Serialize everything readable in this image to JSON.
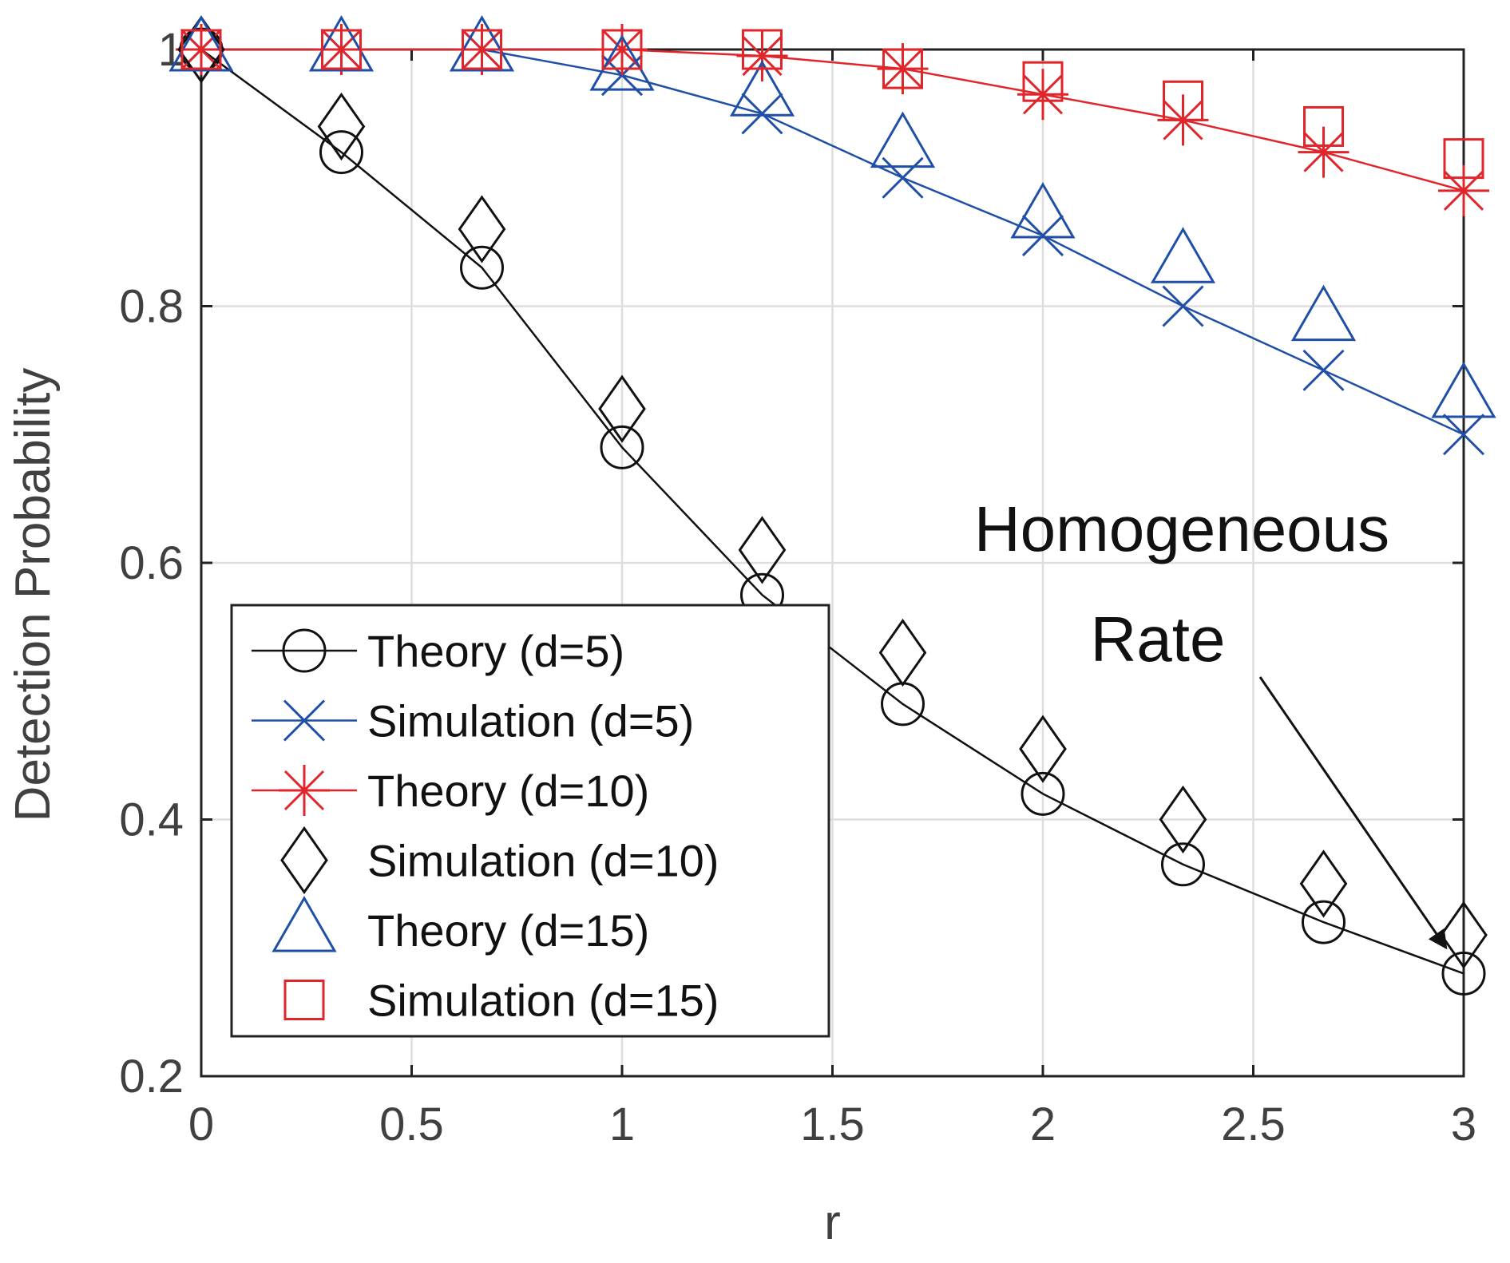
{
  "chart_data": {
    "type": "line",
    "xlabel": "r",
    "ylabel": "Detection Probability",
    "xlim": [
      0,
      3
    ],
    "ylim": [
      0.2,
      1.0
    ],
    "xticks": [
      0,
      0.5,
      1,
      1.5,
      2,
      2.5,
      3
    ],
    "xtick_labels": [
      "0",
      "0.5",
      "1",
      "1.5",
      "2",
      "2.5",
      "3"
    ],
    "yticks": [
      0.2,
      0.4,
      0.6,
      0.8,
      1.0
    ],
    "ytick_labels": [
      "0.2",
      "0.4",
      "0.6",
      "0.8",
      "1"
    ],
    "grid": true,
    "legend_position": "bottom-left",
    "x": [
      0,
      0.333,
      0.667,
      1.0,
      1.333,
      1.667,
      2.0,
      2.333,
      2.667,
      3.0
    ],
    "series": [
      {
        "name": "Theory (d=5)",
        "color": "#111111",
        "marker": "circle",
        "line": true,
        "values": [
          1.0,
          0.92,
          0.83,
          0.69,
          0.575,
          0.49,
          0.42,
          0.365,
          0.32,
          0.28
        ]
      },
      {
        "name": "Simulation (d=5)",
        "color": "#1f4fa6",
        "marker": "x",
        "line": true,
        "values": [
          1.0,
          1.0,
          1.0,
          0.98,
          0.95,
          0.9,
          0.855,
          0.8,
          0.75,
          0.7
        ]
      },
      {
        "name": "Theory (d=10)",
        "color": "#e0262b",
        "marker": "asterisk",
        "line": true,
        "values": [
          1.0,
          1.0,
          1.0,
          1.0,
          0.995,
          0.985,
          0.965,
          0.945,
          0.92,
          0.89
        ]
      },
      {
        "name": "Simulation (d=10)",
        "color": "#111111",
        "marker": "diamond",
        "line": false,
        "values": [
          1.0,
          0.94,
          0.86,
          0.72,
          0.61,
          0.53,
          0.455,
          0.4,
          0.35,
          0.31
        ]
      },
      {
        "name": "Theory (d=15)",
        "color": "#1f4fa6",
        "marker": "triangle",
        "line": false,
        "values": [
          1.0,
          1.0,
          1.0,
          0.985,
          0.965,
          0.925,
          0.87,
          0.835,
          0.79,
          0.73
        ]
      },
      {
        "name": "Simulation (d=15)",
        "color": "#e0262b",
        "marker": "square",
        "line": false,
        "values": [
          1.0,
          1.0,
          1.0,
          1.0,
          1.0,
          0.985,
          0.975,
          0.96,
          0.94,
          0.915
        ]
      }
    ],
    "annotation": {
      "line1": "Homogeneous",
      "line2": "Rate",
      "points_to": {
        "x": 3.0,
        "y": 0.295
      }
    }
  }
}
